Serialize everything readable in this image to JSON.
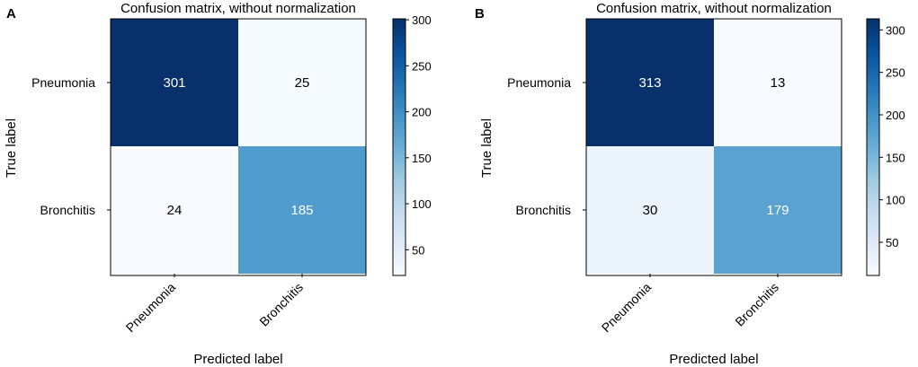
{
  "colors": {
    "scale": [
      "#f7fbff",
      "#deebf7",
      "#c6dbef",
      "#9ecae1",
      "#6baed6",
      "#4292c6",
      "#2171b5",
      "#08519c",
      "#08306b"
    ],
    "text_dark": "#000000",
    "text_light": "#ffffff",
    "frame": "#000000"
  },
  "chart_data": [
    {
      "type": "heatmap",
      "panel_label": "A",
      "title": "Confusion matrix, without normalization",
      "xlabel": "Predicted label",
      "ylabel": "True label",
      "x_categories": [
        "Pneumonia",
        "Bronchitis"
      ],
      "y_categories": [
        "Pneumonia",
        "Bronchitis"
      ],
      "values": [
        [
          301,
          25
        ],
        [
          24,
          185
        ]
      ],
      "colorbar": {
        "range": [
          24,
          301
        ],
        "ticks": [
          50,
          100,
          150,
          200,
          250,
          300
        ],
        "tick_labels": [
          "50",
          "100",
          "150",
          "200",
          "250",
          "300"
        ]
      },
      "colormap": "Blues"
    },
    {
      "type": "heatmap",
      "panel_label": "B",
      "title": "Confusion matrix, without normalization",
      "xlabel": "Predicted label",
      "ylabel": "True label",
      "x_categories": [
        "Pneumonia",
        "Bronchitis"
      ],
      "y_categories": [
        "Pneumonia",
        "Bronchitis"
      ],
      "values": [
        [
          313,
          13
        ],
        [
          30,
          179
        ]
      ],
      "colorbar": {
        "range": [
          13,
          313
        ],
        "ticks": [
          50,
          100,
          150,
          200,
          250,
          300
        ],
        "tick_labels": [
          "50",
          "100",
          "150",
          "200",
          "250",
          "300"
        ]
      },
      "colormap": "Blues"
    }
  ]
}
